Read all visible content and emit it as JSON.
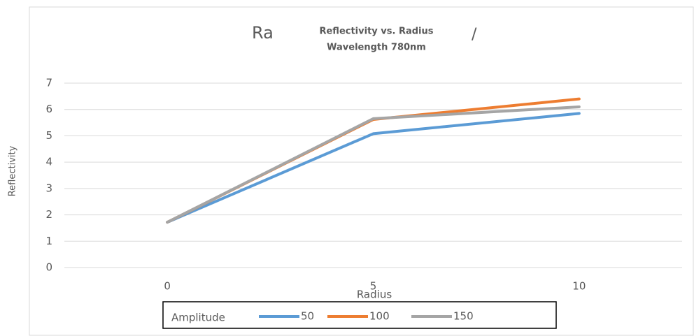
{
  "chart_data": {
    "type": "line",
    "title": [
      "Reflectivity vs. Radius",
      "Wavelength 780nm"
    ],
    "hidden_title_fragments": [
      "Ra",
      "/"
    ],
    "x_label": "Radius",
    "y_label": "Reflectivity",
    "legend_title": "Amplitude",
    "x": [
      0,
      5,
      10
    ],
    "series": [
      {
        "name": "50",
        "color": "#5b9bd5",
        "values": [
          1.72,
          5.08,
          5.85
        ]
      },
      {
        "name": "100",
        "color": "#ed7d31",
        "values": [
          1.72,
          5.62,
          6.4
        ]
      },
      {
        "name": "150",
        "color": "#a5a5a5",
        "values": [
          1.72,
          5.65,
          6.1
        ]
      }
    ],
    "xlim": [
      -2.5,
      12.5
    ],
    "xticks": [
      0,
      5,
      10
    ],
    "ylim": [
      0,
      7
    ],
    "yticks": [
      0,
      1,
      2,
      3,
      4,
      5,
      6,
      7
    ],
    "grid": true,
    "legend": "bottom"
  }
}
